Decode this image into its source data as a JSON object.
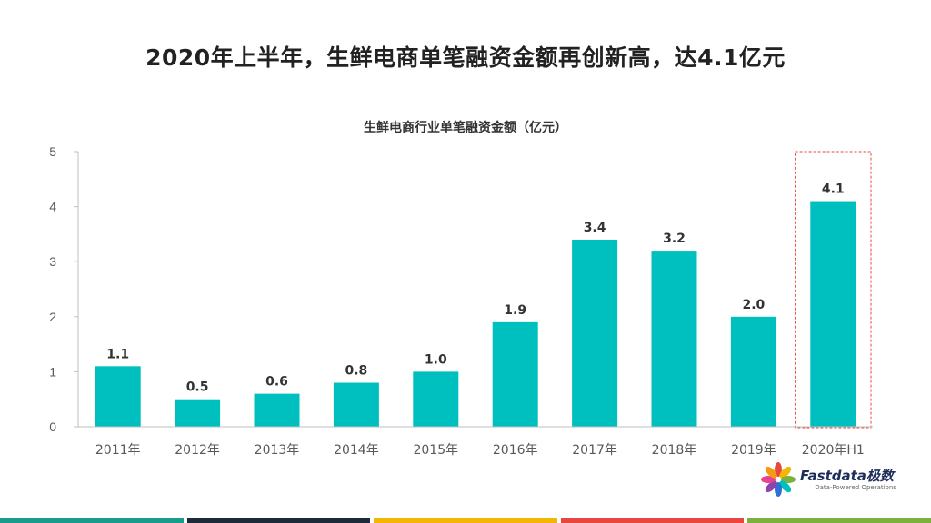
{
  "page": {
    "title": "2020年上半年，生鲜电商单笔融资金额再创新高，达4.1亿元"
  },
  "logo": {
    "name": "Fastdata极数",
    "tagline": "—— Data-Powered Operations ——",
    "icon": "flower-logo-icon"
  },
  "colors": {
    "bar": "#00BFBF",
    "highlight_border": "#E8473F",
    "axis": "#BFBFBF",
    "footer": [
      "#1A9C8C",
      "#1D2A3A",
      "#F2B705",
      "#E8473F",
      "#7BB23B"
    ]
  },
  "chart_data": {
    "type": "bar",
    "title": "生鲜电商行业单笔融资金额（亿元）",
    "categories": [
      "2011年",
      "2012年",
      "2013年",
      "2014年",
      "2015年",
      "2016年",
      "2017年",
      "2018年",
      "2019年",
      "2020年H1"
    ],
    "values": [
      1.1,
      0.5,
      0.6,
      0.8,
      1.0,
      1.9,
      3.4,
      3.2,
      2.0,
      4.1
    ],
    "data_labels": [
      "1.1",
      "0.5",
      "0.6",
      "0.8",
      "1.0",
      "1.9",
      "3.4",
      "3.2",
      "2.0",
      "4.1"
    ],
    "ylim": [
      0,
      5
    ],
    "yticks": [
      0,
      1,
      2,
      3,
      4,
      5
    ],
    "xlabel": "",
    "ylabel": "",
    "grid": false,
    "highlight_category": "2020年H1"
  }
}
